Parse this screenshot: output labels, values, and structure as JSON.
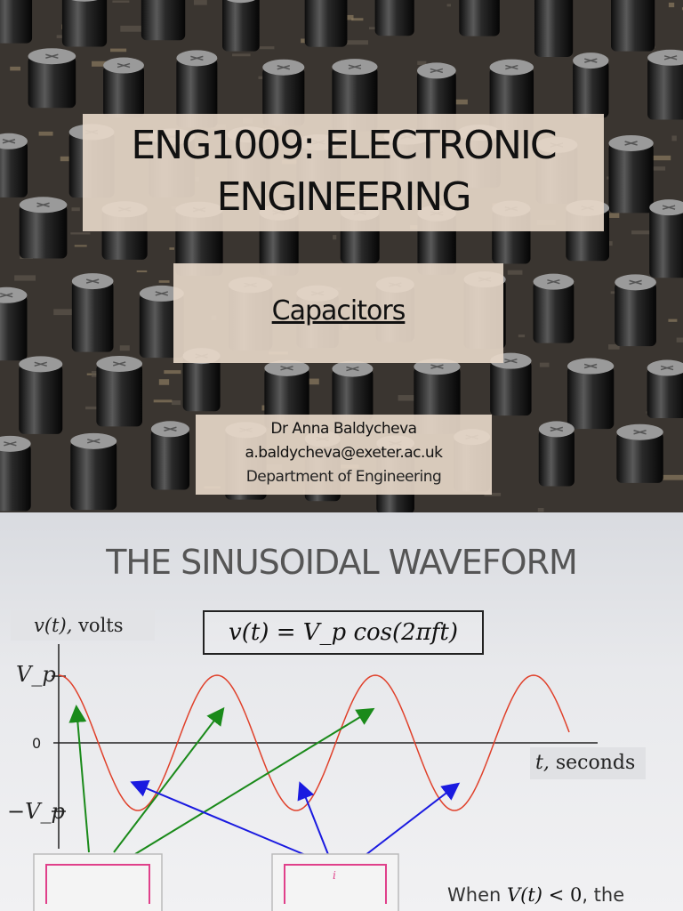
{
  "slide1": {
    "title_line1": "ENG1009: ELECTRONIC",
    "title_line2": "ENGINEERING",
    "subtitle": "Capacitors",
    "author": "Dr Anna Baldycheva",
    "email": "a.baldycheva@exeter.ac.uk",
    "department": "Department of Engineering",
    "background": "circuit-board-photo"
  },
  "slide2": {
    "title": "THE SINUSOIDAL WAVEFORM",
    "y_axis_label_math": "v(t),",
    "y_axis_label_unit": "volts",
    "equation": "v(t) = V_p cos(2πft)",
    "peak_label": "V_p",
    "neg_peak_label": "−V_p",
    "zero_label": "0",
    "x_axis_label_math": "t,",
    "x_axis_label_unit": "seconds",
    "current_label": "i",
    "note_prefix": "When",
    "note_math": "V(t)",
    "note_rel": "< 0",
    "note_suffix": ", the",
    "colors": {
      "wave": "#e0402a",
      "positive_arrows": "#1a8a1a",
      "negative_arrows": "#1a1ae0",
      "loop": "#e0408a"
    }
  }
}
